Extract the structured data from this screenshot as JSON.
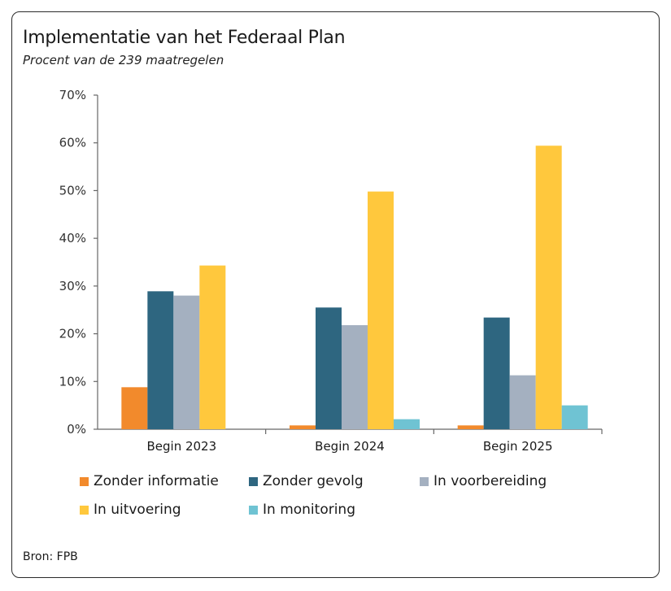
{
  "header": {
    "title": "Implementatie van het Federaal Plan",
    "subtitle": "Procent van de 239 maatregelen"
  },
  "footer": {
    "source": "Bron: FPB"
  },
  "chart_data": {
    "type": "bar",
    "categories": [
      "Begin 2023",
      "Begin 2024",
      "Begin 2025"
    ],
    "series": [
      {
        "name": "Zonder informatie",
        "color": "#F28A2C",
        "values": [
          8.8,
          0.8,
          0.8
        ]
      },
      {
        "name": "Zonder gevolg",
        "color": "#2E6680",
        "values": [
          28.9,
          25.5,
          23.4
        ]
      },
      {
        "name": "In voorbereiding",
        "color": "#A4B0C0",
        "values": [
          28.0,
          21.8,
          11.3
        ]
      },
      {
        "name": "In uitvoering",
        "color": "#FFC83D",
        "values": [
          34.3,
          49.8,
          59.4
        ]
      },
      {
        "name": "In monitoring",
        "color": "#6FC3D3",
        "values": [
          0,
          2.1,
          5.0
        ]
      }
    ],
    "ylim": [
      0,
      70
    ],
    "yticks": [
      "0%",
      "10%",
      "20%",
      "30%",
      "40%",
      "50%",
      "60%",
      "70%"
    ],
    "legend_position": "bottom",
    "grid": false
  }
}
